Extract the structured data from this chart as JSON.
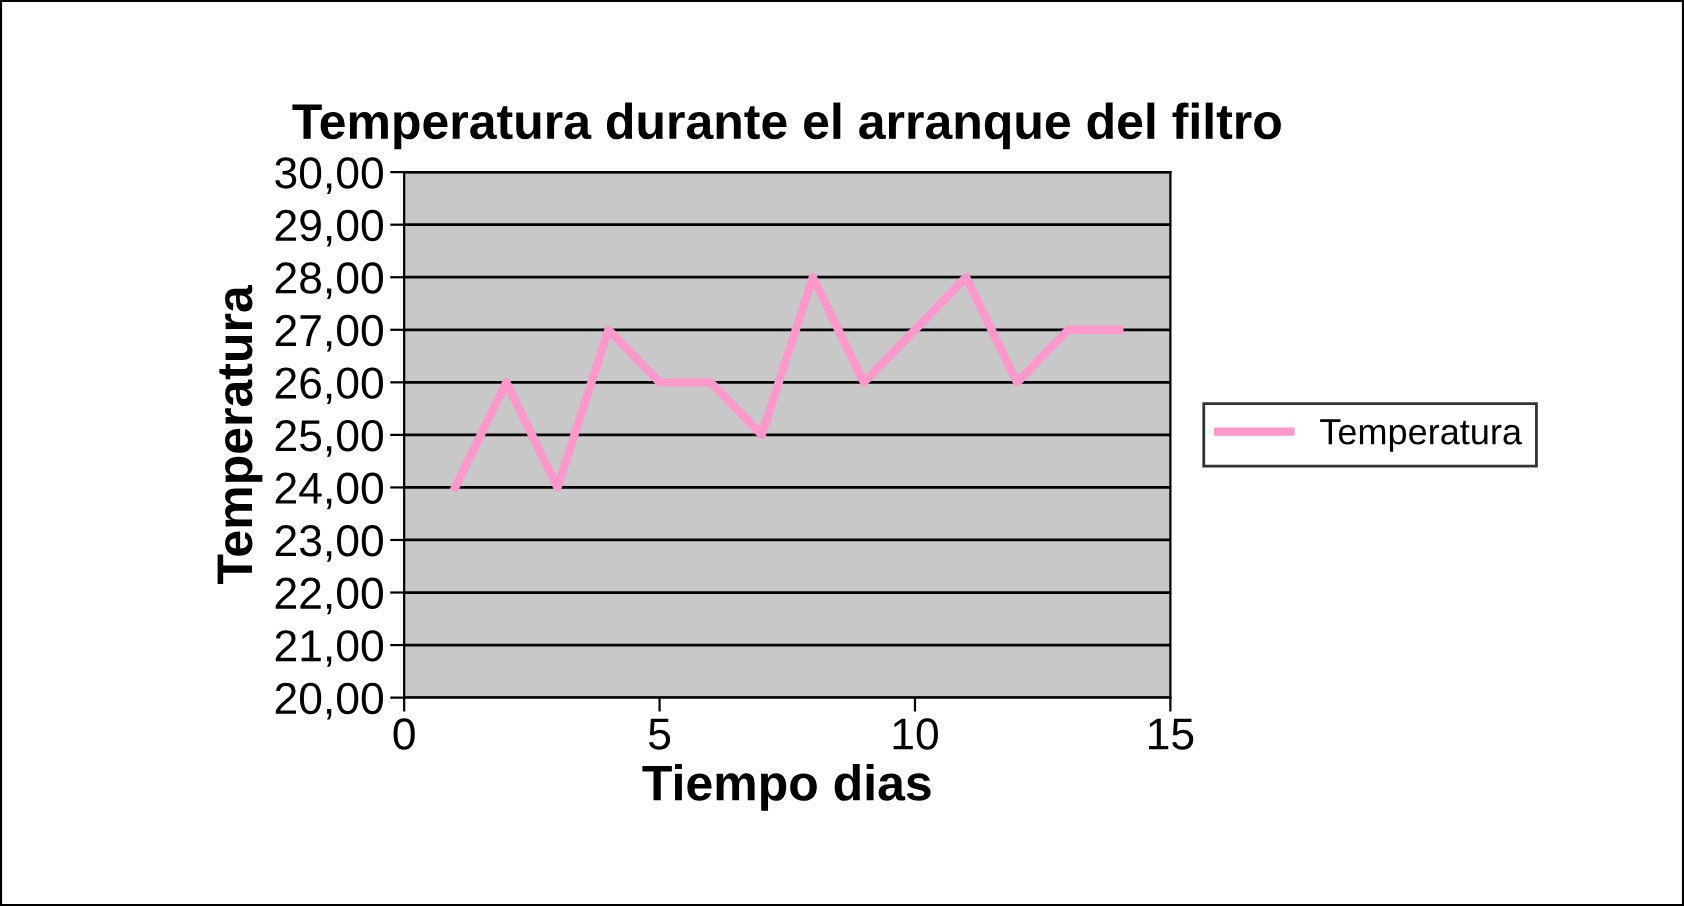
{
  "chart_data": {
    "type": "line",
    "title": "Temperatura durante el arranque del filtro",
    "xlabel": "Tiempo dias",
    "ylabel": "Temperatura",
    "x": [
      1,
      2,
      3,
      4,
      5,
      6,
      7,
      8,
      9,
      10,
      11,
      12,
      13,
      14
    ],
    "series": [
      {
        "name": "Temperatura",
        "color": "#ff99cc",
        "values": [
          24,
          26,
          24,
          27,
          26,
          26,
          25,
          28,
          26,
          27,
          28,
          26,
          27,
          27
        ]
      }
    ],
    "xlim": [
      0,
      15
    ],
    "xticks": [
      0,
      5,
      10,
      15
    ],
    "ylim": [
      20,
      30
    ],
    "yticks": [
      {
        "value": 20,
        "label": "20,00"
      },
      {
        "value": 21,
        "label": "21,00"
      },
      {
        "value": 22,
        "label": "22,00"
      },
      {
        "value": 23,
        "label": "23,00"
      },
      {
        "value": 24,
        "label": "24,00"
      },
      {
        "value": 25,
        "label": "25,00"
      },
      {
        "value": 26,
        "label": "26,00"
      },
      {
        "value": 27,
        "label": "27,00"
      },
      {
        "value": 28,
        "label": "28,00"
      },
      {
        "value": 29,
        "label": "29,00"
      },
      {
        "value": 30,
        "label": "30,00"
      }
    ],
    "grid": "y",
    "legend": "right",
    "marker": "none",
    "line_style": "solid"
  }
}
